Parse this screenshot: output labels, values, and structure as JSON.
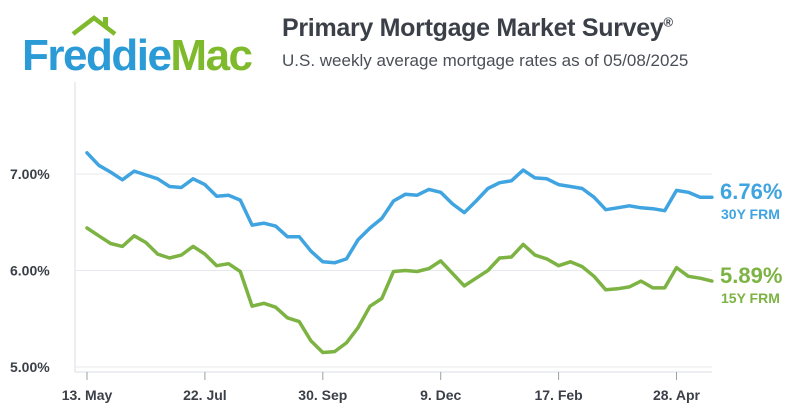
{
  "brand": {
    "logo_word_1": "Freddie",
    "logo_word_2": "Mac",
    "blue": "#2a9bd6",
    "green": "#7fba2d"
  },
  "header": {
    "title": "Primary Mortgage Market Survey",
    "title_mark": "®",
    "subtitle": "U.S. weekly average mortgage rates as of 05/08/2025"
  },
  "chart_data": {
    "type": "line",
    "title": "Primary Mortgage Market Survey",
    "subtitle": "U.S. weekly average mortgage rates as of 05/08/2025",
    "xlabel": "",
    "ylabel": "",
    "ylim": [
      5.0,
      7.9
    ],
    "y_ticks": [
      "7.00%",
      "6.00%",
      "5.00%"
    ],
    "y_tick_values": [
      7.0,
      6.0,
      5.0
    ],
    "x_tick_labels": [
      "13. May",
      "22. Jul",
      "30. Sep",
      "9. Dec",
      "17. Feb",
      "28. Apr"
    ],
    "x_tick_weeks": [
      0,
      10,
      20,
      30,
      40,
      50
    ],
    "grid": "horizontal",
    "series": [
      {
        "name": "30Y FRM",
        "color": "#3fa4e0",
        "end_value_label": "6.76%",
        "values": [
          7.22,
          7.09,
          7.02,
          6.94,
          7.03,
          6.99,
          6.95,
          6.87,
          6.86,
          6.95,
          6.89,
          6.77,
          6.78,
          6.73,
          6.47,
          6.49,
          6.46,
          6.35,
          6.35,
          6.2,
          6.09,
          6.08,
          6.12,
          6.32,
          6.44,
          6.54,
          6.72,
          6.79,
          6.78,
          6.84,
          6.81,
          6.69,
          6.6,
          6.72,
          6.85,
          6.91,
          6.93,
          7.04,
          6.96,
          6.95,
          6.89,
          6.87,
          6.85,
          6.76,
          6.63,
          6.65,
          6.67,
          6.65,
          6.64,
          6.62,
          6.83,
          6.81,
          6.76,
          6.76
        ]
      },
      {
        "name": "15Y FRM",
        "color": "#7cb342",
        "end_value_label": "5.89%",
        "values": [
          6.44,
          6.36,
          6.28,
          6.25,
          6.36,
          6.29,
          6.17,
          6.13,
          6.16,
          6.25,
          6.17,
          6.05,
          6.07,
          5.99,
          5.63,
          5.66,
          5.62,
          5.51,
          5.47,
          5.27,
          5.15,
          5.16,
          5.25,
          5.41,
          5.63,
          5.71,
          5.99,
          6.0,
          5.99,
          6.02,
          6.1,
          5.97,
          5.84,
          5.92,
          6.0,
          6.13,
          6.14,
          6.27,
          6.16,
          6.12,
          6.05,
          6.09,
          6.04,
          5.94,
          5.8,
          5.81,
          5.83,
          5.89,
          5.82,
          5.82,
          6.03,
          5.94,
          5.92,
          5.89
        ]
      }
    ]
  }
}
